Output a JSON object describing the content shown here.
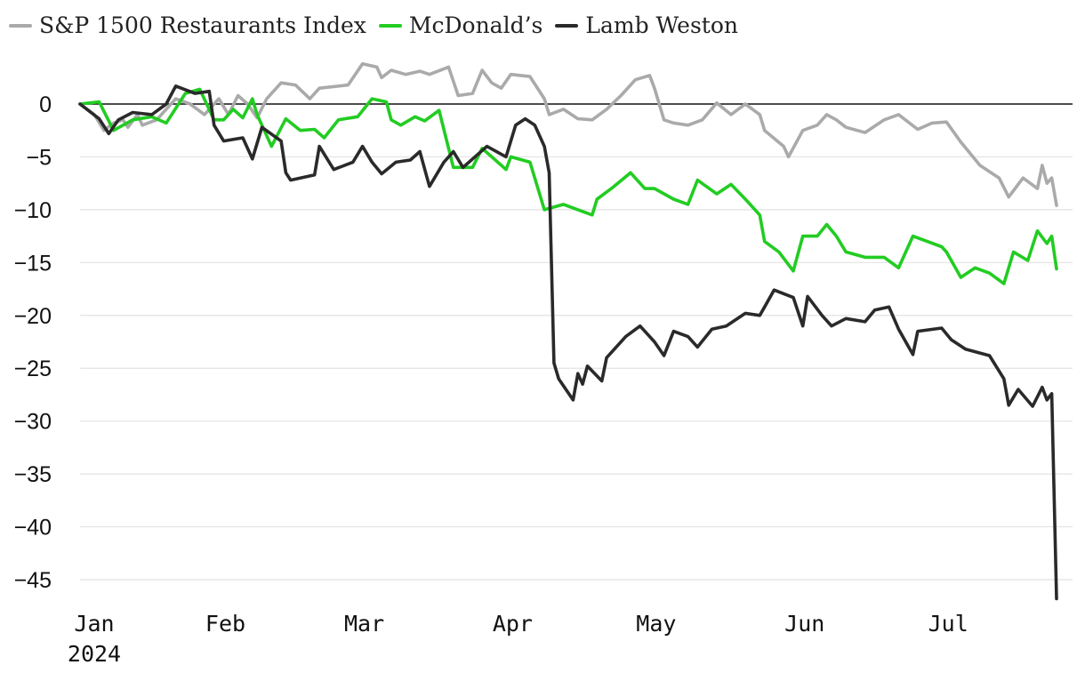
{
  "chart_data": {
    "type": "line",
    "title": "",
    "xlabel": "",
    "ylabel": "",
    "x_range": [
      "2024-01-02",
      "2024-07-24"
    ],
    "ylim": [
      -47,
      4
    ],
    "y_ticks": [
      0,
      -5,
      -10,
      -15,
      -20,
      -25,
      -30,
      -35,
      -40,
      -45
    ],
    "y_tick_labels": [
      "0",
      "−5",
      "−10",
      "−15",
      "−20",
      "−25",
      "−30",
      "−35",
      "−40",
      "−45"
    ],
    "x_ticks": [
      {
        "date": "2024-01-01",
        "label": "Jan",
        "sublabel": "2024"
      },
      {
        "date": "2024-02-01",
        "label": "Feb"
      },
      {
        "date": "2024-03-01",
        "label": "Mar"
      },
      {
        "date": "2024-04-01",
        "label": "Apr"
      },
      {
        "date": "2024-05-01",
        "label": "May"
      },
      {
        "date": "2024-06-01",
        "label": "Jun"
      },
      {
        "date": "2024-07-01",
        "label": "Jul"
      }
    ],
    "grid": true,
    "zero_line": true,
    "legend_position": "top-left",
    "series": [
      {
        "name": "S&P 1500 Restaurants Index",
        "color": "#aaaaaa",
        "points": [
          [
            "2024-01-02",
            0
          ],
          [
            "2024-01-05",
            -1
          ],
          [
            "2024-01-07",
            -2.5
          ],
          [
            "2024-01-09",
            -1.8
          ],
          [
            "2024-01-11",
            -1.5
          ],
          [
            "2024-01-12",
            -2.2
          ],
          [
            "2024-01-14",
            -1
          ],
          [
            "2024-01-15",
            -2
          ],
          [
            "2024-01-18",
            -1.5
          ],
          [
            "2024-01-22",
            0.5
          ],
          [
            "2024-01-25",
            0
          ],
          [
            "2024-01-28",
            -1
          ],
          [
            "2024-01-31",
            0.5
          ],
          [
            "2024-02-02",
            -1
          ],
          [
            "2024-02-04",
            0.8
          ],
          [
            "2024-02-06",
            0
          ],
          [
            "2024-02-08",
            -1.3
          ],
          [
            "2024-02-10",
            0.5
          ],
          [
            "2024-02-13",
            2
          ],
          [
            "2024-02-16",
            1.8
          ],
          [
            "2024-02-19",
            0.5
          ],
          [
            "2024-02-21",
            1.5
          ],
          [
            "2024-02-27",
            1.8
          ],
          [
            "2024-03-01",
            3.8
          ],
          [
            "2024-03-04",
            3.5
          ],
          [
            "2024-03-05",
            2.5
          ],
          [
            "2024-03-07",
            3.2
          ],
          [
            "2024-03-10",
            2.8
          ],
          [
            "2024-03-13",
            3.1
          ],
          [
            "2024-03-15",
            2.8
          ],
          [
            "2024-03-19",
            3.5
          ],
          [
            "2024-03-21",
            0.8
          ],
          [
            "2024-03-24",
            1
          ],
          [
            "2024-03-26",
            3.2
          ],
          [
            "2024-03-28",
            2
          ],
          [
            "2024-03-30",
            1.5
          ],
          [
            "2024-04-01",
            2.8
          ],
          [
            "2024-04-05",
            2.6
          ],
          [
            "2024-04-08",
            0.5
          ],
          [
            "2024-04-09",
            -1
          ],
          [
            "2024-04-12",
            -0.5
          ],
          [
            "2024-04-15",
            -1.4
          ],
          [
            "2024-04-18",
            -1.5
          ],
          [
            "2024-04-21",
            -0.5
          ],
          [
            "2024-04-24",
            0.8
          ],
          [
            "2024-04-27",
            2.3
          ],
          [
            "2024-04-30",
            2.7
          ],
          [
            "2024-05-01",
            1.5
          ],
          [
            "2024-05-03",
            -1.5
          ],
          [
            "2024-05-05",
            -1.8
          ],
          [
            "2024-05-08",
            -2
          ],
          [
            "2024-05-11",
            -1.5
          ],
          [
            "2024-05-14",
            0.1
          ],
          [
            "2024-05-17",
            -1
          ],
          [
            "2024-05-20",
            0
          ],
          [
            "2024-05-23",
            -1
          ],
          [
            "2024-05-24",
            -2.5
          ],
          [
            "2024-05-28",
            -4
          ],
          [
            "2024-05-29",
            -5
          ],
          [
            "2024-06-01",
            -2.5
          ],
          [
            "2024-06-04",
            -2
          ],
          [
            "2024-06-06",
            -1
          ],
          [
            "2024-06-08",
            -1.5
          ],
          [
            "2024-06-10",
            -2.2
          ],
          [
            "2024-06-14",
            -2.7
          ],
          [
            "2024-06-18",
            -1.5
          ],
          [
            "2024-06-21",
            -1
          ],
          [
            "2024-06-25",
            -2.4
          ],
          [
            "2024-06-28",
            -1.8
          ],
          [
            "2024-07-01",
            -1.7
          ],
          [
            "2024-07-04",
            -3.6
          ],
          [
            "2024-07-08",
            -5.8
          ],
          [
            "2024-07-12",
            -7
          ],
          [
            "2024-07-14",
            -8.8
          ],
          [
            "2024-07-17",
            -7
          ],
          [
            "2024-07-20",
            -8
          ],
          [
            "2024-07-21",
            -5.8
          ],
          [
            "2024-07-22",
            -7.5
          ],
          [
            "2024-07-23",
            -7
          ],
          [
            "2024-07-24",
            -9.6
          ]
        ]
      },
      {
        "name": "McDonald’s",
        "color": "#22cc22",
        "points": [
          [
            "2024-01-02",
            0
          ],
          [
            "2024-01-06",
            0.2
          ],
          [
            "2024-01-09",
            -2.5
          ],
          [
            "2024-01-13",
            -1.5
          ],
          [
            "2024-01-17",
            -1.2
          ],
          [
            "2024-01-20",
            -1.8
          ],
          [
            "2024-01-24",
            1
          ],
          [
            "2024-01-27",
            1.4
          ],
          [
            "2024-01-30",
            -1.5
          ],
          [
            "2024-02-01",
            -1.5
          ],
          [
            "2024-02-03",
            -0.5
          ],
          [
            "2024-02-05",
            -1.3
          ],
          [
            "2024-02-07",
            0.5
          ],
          [
            "2024-02-08",
            -1
          ],
          [
            "2024-02-11",
            -4
          ],
          [
            "2024-02-14",
            -1.4
          ],
          [
            "2024-02-17",
            -2.5
          ],
          [
            "2024-02-20",
            -2.4
          ],
          [
            "2024-02-22",
            -3.2
          ],
          [
            "2024-02-25",
            -1.5
          ],
          [
            "2024-02-29",
            -1.2
          ],
          [
            "2024-03-03",
            0.5
          ],
          [
            "2024-03-06",
            0.2
          ],
          [
            "2024-03-07",
            -1.5
          ],
          [
            "2024-03-09",
            -2
          ],
          [
            "2024-03-12",
            -1.2
          ],
          [
            "2024-03-14",
            -1.6
          ],
          [
            "2024-03-17",
            -0.6
          ],
          [
            "2024-03-20",
            -6
          ],
          [
            "2024-03-24",
            -6
          ],
          [
            "2024-03-26",
            -4.2
          ],
          [
            "2024-03-28",
            -5
          ],
          [
            "2024-03-31",
            -6.2
          ],
          [
            "2024-04-01",
            -5
          ],
          [
            "2024-04-05",
            -5.5
          ],
          [
            "2024-04-08",
            -10
          ],
          [
            "2024-04-12",
            -9.5
          ],
          [
            "2024-04-15",
            -10
          ],
          [
            "2024-04-18",
            -10.5
          ],
          [
            "2024-04-19",
            -9
          ],
          [
            "2024-04-22",
            -8
          ],
          [
            "2024-04-26",
            -6.5
          ],
          [
            "2024-04-29",
            -8
          ],
          [
            "2024-05-01",
            -8
          ],
          [
            "2024-05-05",
            -9
          ],
          [
            "2024-05-08",
            -9.5
          ],
          [
            "2024-05-10",
            -7.2
          ],
          [
            "2024-05-14",
            -8.5
          ],
          [
            "2024-05-17",
            -7.6
          ],
          [
            "2024-05-20",
            -9
          ],
          [
            "2024-05-23",
            -10.5
          ],
          [
            "2024-05-24",
            -13
          ],
          [
            "2024-05-27",
            -14
          ],
          [
            "2024-05-30",
            -15.8
          ],
          [
            "2024-06-01",
            -12.5
          ],
          [
            "2024-06-04",
            -12.5
          ],
          [
            "2024-06-06",
            -11.4
          ],
          [
            "2024-06-08",
            -12.5
          ],
          [
            "2024-06-10",
            -14
          ],
          [
            "2024-06-14",
            -14.5
          ],
          [
            "2024-06-18",
            -14.5
          ],
          [
            "2024-06-21",
            -15.5
          ],
          [
            "2024-06-24",
            -12.5
          ],
          [
            "2024-06-27",
            -13
          ],
          [
            "2024-06-30",
            -13.5
          ],
          [
            "2024-07-01",
            -14
          ],
          [
            "2024-07-04",
            -16.4
          ],
          [
            "2024-07-07",
            -15.5
          ],
          [
            "2024-07-10",
            -16
          ],
          [
            "2024-07-13",
            -17
          ],
          [
            "2024-07-15",
            -14
          ],
          [
            "2024-07-18",
            -14.8
          ],
          [
            "2024-07-20",
            -12
          ],
          [
            "2024-07-22",
            -13.2
          ],
          [
            "2024-07-23",
            -12.5
          ],
          [
            "2024-07-24",
            -15.6
          ]
        ]
      },
      {
        "name": "Lamb Weston",
        "color": "#2a2a2a",
        "points": [
          [
            "2024-01-02",
            0
          ],
          [
            "2024-01-06",
            -1.4
          ],
          [
            "2024-01-08",
            -2.8
          ],
          [
            "2024-01-10",
            -1.5
          ],
          [
            "2024-01-13",
            -0.8
          ],
          [
            "2024-01-17",
            -1
          ],
          [
            "2024-01-20",
            0
          ],
          [
            "2024-01-22",
            1.7
          ],
          [
            "2024-01-26",
            1
          ],
          [
            "2024-01-29",
            1.2
          ],
          [
            "2024-01-30",
            -2
          ],
          [
            "2024-02-01",
            -3.5
          ],
          [
            "2024-02-05",
            -3.2
          ],
          [
            "2024-02-07",
            -5.2
          ],
          [
            "2024-02-09",
            -2.2
          ],
          [
            "2024-02-13",
            -3.5
          ],
          [
            "2024-02-14",
            -6.5
          ],
          [
            "2024-02-15",
            -7.2
          ],
          [
            "2024-02-20",
            -6.7
          ],
          [
            "2024-02-21",
            -4
          ],
          [
            "2024-02-24",
            -6.2
          ],
          [
            "2024-02-28",
            -5.5
          ],
          [
            "2024-03-01",
            -4
          ],
          [
            "2024-03-03",
            -5.5
          ],
          [
            "2024-03-05",
            -6.6
          ],
          [
            "2024-03-08",
            -5.5
          ],
          [
            "2024-03-11",
            -5.3
          ],
          [
            "2024-03-13",
            -4.5
          ],
          [
            "2024-03-15",
            -7.8
          ],
          [
            "2024-03-18",
            -5.5
          ],
          [
            "2024-03-20",
            -4.5
          ],
          [
            "2024-03-22",
            -6
          ],
          [
            "2024-03-27",
            -4
          ],
          [
            "2024-03-31",
            -5
          ],
          [
            "2024-04-02",
            -2
          ],
          [
            "2024-04-04",
            -1.4
          ],
          [
            "2024-04-06",
            -2
          ],
          [
            "2024-04-08",
            -4
          ],
          [
            "2024-04-09",
            -6.5
          ],
          [
            "2024-04-10",
            -24.5
          ],
          [
            "2024-04-11",
            -26
          ],
          [
            "2024-04-14",
            -28
          ],
          [
            "2024-04-15",
            -25.5
          ],
          [
            "2024-04-16",
            -26.5
          ],
          [
            "2024-04-17",
            -24.8
          ],
          [
            "2024-04-20",
            -26.2
          ],
          [
            "2024-04-21",
            -24
          ],
          [
            "2024-04-25",
            -22
          ],
          [
            "2024-04-28",
            -21
          ],
          [
            "2024-05-01",
            -22.5
          ],
          [
            "2024-05-03",
            -23.8
          ],
          [
            "2024-05-05",
            -21.5
          ],
          [
            "2024-05-08",
            -22
          ],
          [
            "2024-05-10",
            -23
          ],
          [
            "2024-05-13",
            -21.3
          ],
          [
            "2024-05-16",
            -21
          ],
          [
            "2024-05-20",
            -19.8
          ],
          [
            "2024-05-23",
            -20
          ],
          [
            "2024-05-24",
            -19.2
          ],
          [
            "2024-05-26",
            -17.6
          ],
          [
            "2024-05-30",
            -18.3
          ],
          [
            "2024-06-01",
            -21
          ],
          [
            "2024-06-02",
            -18.2
          ],
          [
            "2024-06-05",
            -20
          ],
          [
            "2024-06-07",
            -21
          ],
          [
            "2024-06-10",
            -20.3
          ],
          [
            "2024-06-14",
            -20.6
          ],
          [
            "2024-06-16",
            -19.5
          ],
          [
            "2024-06-19",
            -19.2
          ],
          [
            "2024-06-21",
            -21.3
          ],
          [
            "2024-06-24",
            -23.7
          ],
          [
            "2024-06-25",
            -21.5
          ],
          [
            "2024-06-30",
            -21.2
          ],
          [
            "2024-07-02",
            -22.3
          ],
          [
            "2024-07-05",
            -23.2
          ],
          [
            "2024-07-10",
            -23.8
          ],
          [
            "2024-07-13",
            -26
          ],
          [
            "2024-07-14",
            -28.5
          ],
          [
            "2024-07-16",
            -27
          ],
          [
            "2024-07-19",
            -28.6
          ],
          [
            "2024-07-21",
            -26.8
          ],
          [
            "2024-07-22",
            -28
          ],
          [
            "2024-07-23",
            -27.4
          ],
          [
            "2024-07-24",
            -46.8
          ]
        ]
      }
    ]
  }
}
